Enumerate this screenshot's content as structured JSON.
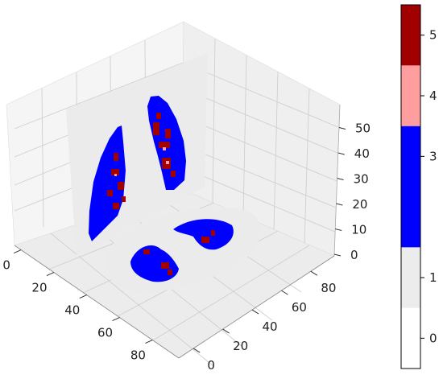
{
  "chart_data": {
    "type": "3d-slice-volume",
    "title": "",
    "axes": {
      "x": {
        "label": "",
        "ticks": [
          0,
          20,
          40,
          60,
          80
        ]
      },
      "y": {
        "label": "",
        "ticks": [
          0,
          20,
          40,
          60,
          80
        ]
      },
      "z": {
        "label": "",
        "ticks": [
          0,
          10,
          20,
          30,
          40,
          50
        ]
      }
    },
    "grid": true,
    "slices": [
      {
        "plane": "coronal (vertical)",
        "classes_present": [
          1,
          3,
          4,
          5
        ]
      },
      {
        "plane": "axial (horizontal)",
        "classes_present": [
          1,
          3,
          5
        ]
      }
    ],
    "colorbar": {
      "placement": "right",
      "ticks": [
        "0",
        "1",
        "3",
        "4",
        "5"
      ],
      "levels": [
        {
          "value": 0,
          "color": "#ffffff"
        },
        {
          "value": 1,
          "color": "#ececec"
        },
        {
          "value": 3,
          "color": "#0000ff"
        },
        {
          "value": 4,
          "color": "#ff9e9e"
        },
        {
          "value": 5,
          "color": "#a00000"
        }
      ]
    }
  }
}
